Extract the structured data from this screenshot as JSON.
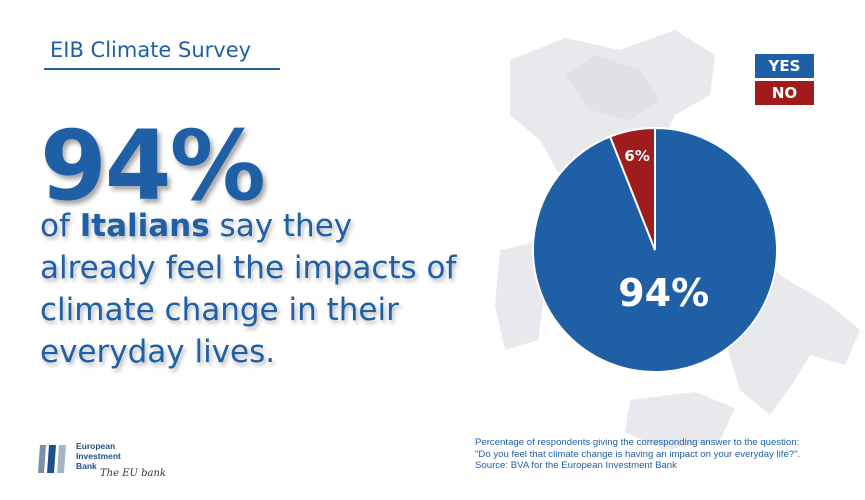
{
  "title": "EIB Climate Survey",
  "headline": {
    "percent": "94%",
    "pre": "of ",
    "emphasis": "Italians",
    "post": " say they already feel the impacts of climate change in their everyday lives."
  },
  "legend": [
    {
      "label": "YES",
      "color": "#1f5fa6"
    },
    {
      "label": "NO",
      "color": "#a01c1c"
    }
  ],
  "chart_data": {
    "type": "pie",
    "slices": [
      {
        "category": "YES",
        "value": 94,
        "label": "94%",
        "color": "#1f5fa6"
      },
      {
        "category": "NO",
        "value": 6,
        "label": "6%",
        "color": "#a01c1c"
      }
    ],
    "legend_position": "top-right"
  },
  "footer": {
    "line1": "Percentage of respondents  giving the corresponding answer  to the question:",
    "line2": "\"Do you feel that climate change is having an impact on your everyday life?\".",
    "line3": "Source: BVA for the European Investment Bank"
  },
  "logo": {
    "line1": "European",
    "line2": "Investment",
    "line3": "Bank",
    "tagline": "The EU bank"
  }
}
